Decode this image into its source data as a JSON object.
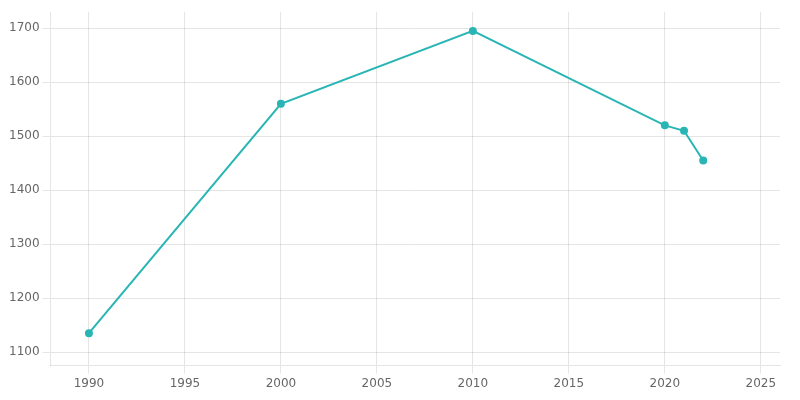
{
  "chart_data": {
    "type": "line",
    "x": [
      1990,
      2000,
      2010,
      2020,
      2021,
      2022
    ],
    "values": [
      1135,
      1560,
      1695,
      1520,
      1510,
      1455
    ],
    "color": "#2ab5b5",
    "marker": "circle",
    "xlim": [
      1988,
      2026
    ],
    "xticks": [
      1990,
      1995,
      2000,
      2005,
      2010,
      2015,
      2020,
      2025
    ],
    "ylim": [
      1075,
      1730
    ],
    "yticks": [
      1100,
      1200,
      1300,
      1400,
      1500,
      1600,
      1700
    ],
    "grid": true
  }
}
